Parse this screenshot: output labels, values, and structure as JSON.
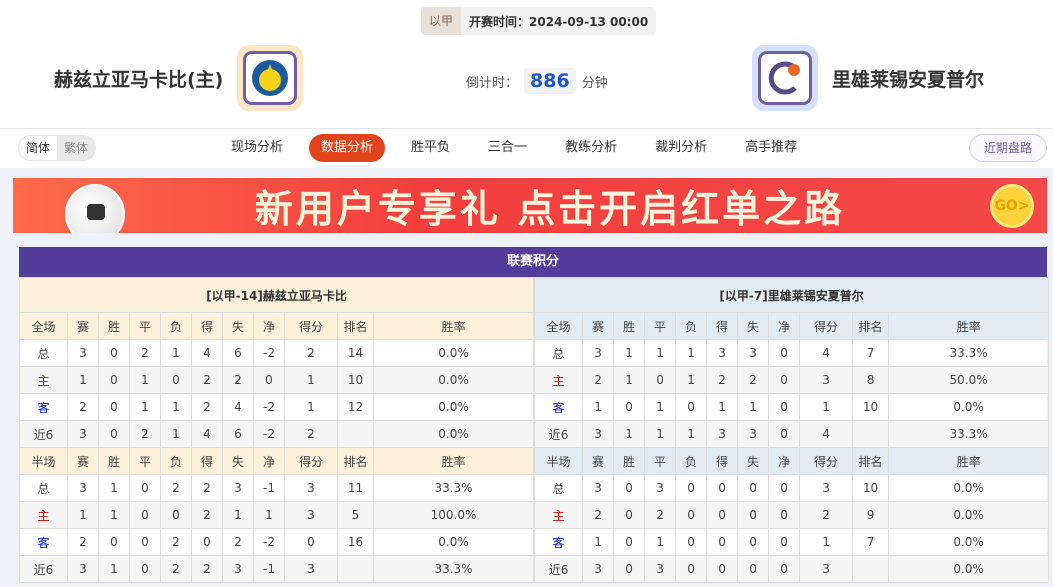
{
  "match": {
    "league": "以甲",
    "kickoff_label": "开赛时间：",
    "kickoff": "2024-09-13 00:00"
  },
  "home": {
    "name": "赫兹立亚马卡比(主)",
    "logo": "maccabi-herzliya-logo"
  },
  "away": {
    "name": "里雄莱锡安夏普尔",
    "logo": "hapoel-rishon-logo"
  },
  "countdown": {
    "label": "倒计时：",
    "value": "886",
    "unit": "分钟"
  },
  "lang": {
    "simplified": "简体",
    "traditional": "繁体"
  },
  "tabs": [
    {
      "label": "现场分析"
    },
    {
      "label": "数据分析",
      "active": true
    },
    {
      "label": "胜平负"
    },
    {
      "label": "三合一"
    },
    {
      "label": "教练分析"
    },
    {
      "label": "裁判分析"
    },
    {
      "label": "高手推荐"
    }
  ],
  "recent_button": "近期盘路",
  "banner": {
    "text": "新用户专享礼 点击开启红单之路",
    "go": "GO>"
  },
  "standings": {
    "title": "联赛积分",
    "columns": [
      "赛",
      "胜",
      "平",
      "负",
      "得",
      "失",
      "净",
      "得分",
      "排名",
      "胜率"
    ],
    "full_label": "全场",
    "half_label": "半场",
    "teams": [
      {
        "header": "[以甲-14]赫兹立亚马卡比",
        "full": [
          [
            "总",
            "3",
            "0",
            "2",
            "1",
            "4",
            "6",
            "-2",
            "2",
            "14",
            "0.0%"
          ],
          [
            "主",
            "1",
            "0",
            "1",
            "0",
            "2",
            "2",
            "0",
            "1",
            "10",
            "0.0%"
          ],
          [
            "客",
            "2",
            "0",
            "1",
            "1",
            "2",
            "4",
            "-2",
            "1",
            "12",
            "0.0%"
          ],
          [
            "近6",
            "3",
            "0",
            "2",
            "1",
            "4",
            "6",
            "-2",
            "2",
            "",
            "0.0%"
          ]
        ],
        "half": [
          [
            "总",
            "3",
            "1",
            "0",
            "2",
            "2",
            "3",
            "-1",
            "3",
            "11",
            "33.3%"
          ],
          [
            "主",
            "1",
            "1",
            "0",
            "0",
            "2",
            "1",
            "1",
            "3",
            "5",
            "100.0%"
          ],
          [
            "客",
            "2",
            "0",
            "0",
            "2",
            "0",
            "2",
            "-2",
            "0",
            "16",
            "0.0%"
          ],
          [
            "近6",
            "3",
            "1",
            "0",
            "2",
            "2",
            "3",
            "-1",
            "3",
            "",
            "33.3%"
          ]
        ]
      },
      {
        "header": "[以甲-7]里雄莱锡安夏普尔",
        "full": [
          [
            "总",
            "3",
            "1",
            "1",
            "1",
            "3",
            "3",
            "0",
            "4",
            "7",
            "33.3%"
          ],
          [
            "主",
            "2",
            "1",
            "0",
            "1",
            "2",
            "2",
            "0",
            "3",
            "8",
            "50.0%"
          ],
          [
            "客",
            "1",
            "0",
            "1",
            "0",
            "1",
            "1",
            "0",
            "1",
            "10",
            "0.0%"
          ],
          [
            "近6",
            "3",
            "1",
            "1",
            "1",
            "3",
            "3",
            "0",
            "4",
            "",
            "33.3%"
          ]
        ],
        "half": [
          [
            "总",
            "3",
            "0",
            "3",
            "0",
            "0",
            "0",
            "0",
            "3",
            "10",
            "0.0%"
          ],
          [
            "主",
            "2",
            "0",
            "2",
            "0",
            "0",
            "0",
            "0",
            "2",
            "9",
            "0.0%"
          ],
          [
            "客",
            "1",
            "0",
            "1",
            "0",
            "0",
            "0",
            "0",
            "1",
            "7",
            "0.0%"
          ],
          [
            "近6",
            "3",
            "0",
            "3",
            "0",
            "0",
            "0",
            "0",
            "3",
            "",
            "0.0%"
          ]
        ]
      }
    ]
  },
  "colors": {
    "accent": "#e2441b",
    "title_bar": "#523e9a",
    "home_label": "#e00000",
    "away_label": "#0019d6"
  }
}
